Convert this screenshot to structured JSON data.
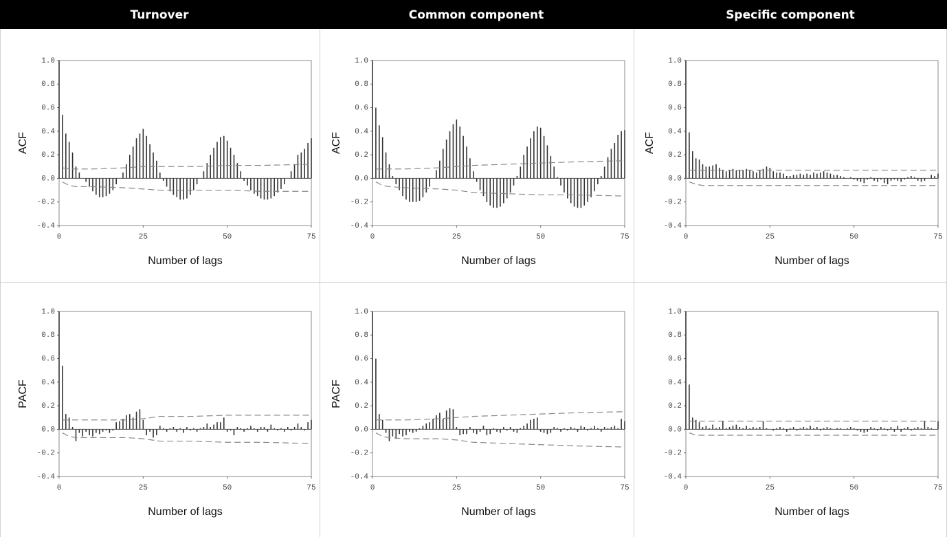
{
  "header": {
    "columns": [
      "Turnover",
      "Common component",
      "Specific component"
    ]
  },
  "chart_data": [
    {
      "type": "bar",
      "ylabel": "ACF",
      "xlabel": "Number of lags",
      "x": [
        0,
        1,
        2,
        3,
        4,
        5,
        6,
        7,
        8,
        9,
        10,
        11,
        12,
        13,
        14,
        15,
        16,
        17,
        18,
        19,
        20,
        21,
        22,
        23,
        24,
        25,
        26,
        27,
        28,
        29,
        30,
        31,
        32,
        33,
        34,
        35,
        36,
        37,
        38,
        39,
        40,
        41,
        42,
        43,
        44,
        45,
        46,
        47,
        48,
        49,
        50,
        51,
        52,
        53,
        54,
        55,
        56,
        57,
        58,
        59,
        60,
        61,
        62,
        63,
        64,
        65,
        66,
        67,
        68,
        69,
        70,
        71,
        72,
        73,
        74,
        75
      ],
      "values": [
        1.0,
        0.54,
        0.38,
        0.31,
        0.22,
        0.1,
        0.05,
        0.0,
        -0.03,
        -0.07,
        -0.11,
        -0.14,
        -0.16,
        -0.16,
        -0.15,
        -0.13,
        -0.1,
        -0.05,
        0.0,
        0.05,
        0.12,
        0.2,
        0.27,
        0.34,
        0.38,
        0.42,
        0.36,
        0.29,
        0.22,
        0.15,
        0.05,
        -0.02,
        -0.07,
        -0.11,
        -0.14,
        -0.16,
        -0.18,
        -0.18,
        -0.17,
        -0.14,
        -0.1,
        -0.05,
        0.0,
        0.06,
        0.13,
        0.2,
        0.26,
        0.31,
        0.35,
        0.36,
        0.32,
        0.26,
        0.2,
        0.13,
        0.06,
        -0.02,
        -0.06,
        -0.1,
        -0.13,
        -0.15,
        -0.17,
        -0.18,
        -0.18,
        -0.17,
        -0.15,
        -0.12,
        -0.09,
        -0.05,
        0.0,
        0.06,
        0.12,
        0.2,
        0.22,
        0.25,
        0.3,
        0.34
      ],
      "confidence_band": {
        "x": [
          1,
          3,
          5,
          10,
          20,
          25,
          30,
          40,
          50,
          60,
          75
        ],
        "upper": [
          0.09,
          0.08,
          0.08,
          0.08,
          0.09,
          0.1,
          0.1,
          0.1,
          0.11,
          0.11,
          0.12
        ],
        "lower": [
          -0.03,
          -0.06,
          -0.07,
          -0.07,
          -0.08,
          -0.09,
          -0.1,
          -0.1,
          -0.1,
          -0.11,
          -0.11
        ]
      },
      "xlim": [
        0,
        75
      ],
      "xticks": [
        0,
        25,
        50,
        75
      ],
      "ylim": [
        -0.4,
        1.0
      ],
      "yticks": [
        {
          "value": -0.4,
          "label": "-0.4"
        },
        -0.2,
        {
          "value": 0,
          "label": "0.0"
        },
        0.2,
        0.4,
        0.6,
        0.8,
        {
          "value": 1.0,
          "label": "1.0"
        }
      ],
      "color": "#333333"
    },
    {
      "type": "bar",
      "ylabel": "ACF",
      "xlabel": "Number of lags",
      "x": [
        0,
        1,
        2,
        3,
        4,
        5,
        6,
        7,
        8,
        9,
        10,
        11,
        12,
        13,
        14,
        15,
        16,
        17,
        18,
        19,
        20,
        21,
        22,
        23,
        24,
        25,
        26,
        27,
        28,
        29,
        30,
        31,
        32,
        33,
        34,
        35,
        36,
        37,
        38,
        39,
        40,
        41,
        42,
        43,
        44,
        45,
        46,
        47,
        48,
        49,
        50,
        51,
        52,
        53,
        54,
        55,
        56,
        57,
        58,
        59,
        60,
        61,
        62,
        63,
        64,
        65,
        66,
        67,
        68,
        69,
        70,
        71,
        72,
        73,
        74,
        75
      ],
      "values": [
        1.0,
        0.6,
        0.45,
        0.35,
        0.22,
        0.12,
        0.02,
        -0.05,
        -0.1,
        -0.15,
        -0.18,
        -0.2,
        -0.2,
        -0.2,
        -0.19,
        -0.16,
        -0.12,
        -0.07,
        0.0,
        0.07,
        0.15,
        0.25,
        0.33,
        0.4,
        0.46,
        0.5,
        0.44,
        0.36,
        0.27,
        0.17,
        0.06,
        -0.03,
        -0.1,
        -0.15,
        -0.2,
        -0.23,
        -0.25,
        -0.25,
        -0.24,
        -0.21,
        -0.17,
        -0.12,
        -0.06,
        0.02,
        0.1,
        0.2,
        0.27,
        0.34,
        0.4,
        0.44,
        0.43,
        0.36,
        0.28,
        0.19,
        0.1,
        0.01,
        -0.06,
        -0.12,
        -0.17,
        -0.21,
        -0.24,
        -0.25,
        -0.25,
        -0.23,
        -0.2,
        -0.16,
        -0.11,
        -0.05,
        0.02,
        0.1,
        0.18,
        0.25,
        0.3,
        0.37,
        0.4,
        0.41
      ],
      "confidence_band": {
        "x": [
          1,
          3,
          5,
          10,
          20,
          25,
          30,
          40,
          50,
          60,
          75
        ],
        "upper": [
          0.08,
          0.08,
          0.08,
          0.08,
          0.09,
          0.1,
          0.11,
          0.12,
          0.13,
          0.14,
          0.15
        ],
        "lower": [
          -0.03,
          -0.06,
          -0.07,
          -0.08,
          -0.09,
          -0.1,
          -0.12,
          -0.13,
          -0.14,
          -0.14,
          -0.15
        ]
      },
      "xlim": [
        0,
        75
      ],
      "xticks": [
        0,
        25,
        50,
        75
      ],
      "ylim": [
        -0.4,
        1.0
      ],
      "yticks": [
        {
          "value": -0.4,
          "label": "-0.4"
        },
        -0.2,
        {
          "value": 0,
          "label": "0.0"
        },
        0.2,
        0.4,
        0.6,
        0.8,
        {
          "value": 1.0,
          "label": "1.0"
        }
      ],
      "color": "#333333"
    },
    {
      "type": "bar",
      "ylabel": "ACF",
      "xlabel": "Number of lags",
      "x": [
        0,
        1,
        2,
        3,
        4,
        5,
        6,
        7,
        8,
        9,
        10,
        11,
        12,
        13,
        14,
        15,
        16,
        17,
        18,
        19,
        20,
        21,
        22,
        23,
        24,
        25,
        26,
        27,
        28,
        29,
        30,
        31,
        32,
        33,
        34,
        35,
        36,
        37,
        38,
        39,
        40,
        41,
        42,
        43,
        44,
        45,
        46,
        47,
        48,
        49,
        50,
        51,
        52,
        53,
        54,
        55,
        56,
        57,
        58,
        59,
        60,
        61,
        62,
        63,
        64,
        65,
        66,
        67,
        68,
        69,
        70,
        71,
        72,
        73,
        74,
        75
      ],
      "values": [
        1.0,
        0.39,
        0.23,
        0.17,
        0.16,
        0.12,
        0.1,
        0.1,
        0.11,
        0.12,
        0.09,
        0.07,
        0.06,
        0.07,
        0.08,
        0.07,
        0.07,
        0.07,
        0.08,
        0.07,
        0.06,
        0.05,
        0.07,
        0.08,
        0.1,
        0.09,
        0.06,
        0.05,
        0.05,
        0.04,
        0.02,
        0.02,
        0.03,
        0.03,
        0.04,
        0.03,
        0.04,
        0.03,
        0.05,
        0.04,
        0.05,
        0.06,
        0.05,
        0.04,
        0.03,
        0.03,
        0.02,
        0.01,
        0.0,
        0.01,
        -0.01,
        -0.02,
        -0.03,
        -0.04,
        -0.01,
        0.01,
        -0.02,
        -0.03,
        -0.01,
        -0.04,
        -0.05,
        -0.02,
        -0.01,
        -0.02,
        -0.03,
        -0.01,
        0.01,
        0.02,
        0.01,
        -0.02,
        -0.03,
        -0.02,
        0.0,
        0.03,
        0.02,
        0.04
      ],
      "confidence_band": {
        "x": [
          1,
          3,
          5,
          10,
          20,
          25,
          30,
          40,
          50,
          60,
          75
        ],
        "upper": [
          0.07,
          0.07,
          0.07,
          0.07,
          0.07,
          0.07,
          0.07,
          0.07,
          0.07,
          0.07,
          0.07
        ],
        "lower": [
          -0.03,
          -0.05,
          -0.06,
          -0.06,
          -0.06,
          -0.06,
          -0.06,
          -0.06,
          -0.06,
          -0.06,
          -0.06
        ]
      },
      "xlim": [
        0,
        75
      ],
      "xticks": [
        0,
        25,
        50,
        75
      ],
      "ylim": [
        -0.4,
        1.0
      ],
      "yticks": [
        {
          "value": -0.4,
          "label": "-0.4"
        },
        -0.2,
        {
          "value": 0,
          "label": "0.0"
        },
        0.2,
        0.4,
        0.6,
        0.8,
        {
          "value": 1.0,
          "label": "1.0"
        }
      ],
      "color": "#333333"
    },
    {
      "type": "bar",
      "ylabel": "PACF",
      "xlabel": "Number of lags",
      "x": [
        0,
        1,
        2,
        3,
        4,
        5,
        6,
        7,
        8,
        9,
        10,
        11,
        12,
        13,
        14,
        15,
        16,
        17,
        18,
        19,
        20,
        21,
        22,
        23,
        24,
        25,
        26,
        27,
        28,
        29,
        30,
        31,
        32,
        33,
        34,
        35,
        36,
        37,
        38,
        39,
        40,
        41,
        42,
        43,
        44,
        45,
        46,
        47,
        48,
        49,
        50,
        51,
        52,
        53,
        54,
        55,
        56,
        57,
        58,
        59,
        60,
        61,
        62,
        63,
        64,
        65,
        66,
        67,
        68,
        69,
        70,
        71,
        72,
        73,
        74,
        75
      ],
      "values": [
        1.0,
        0.54,
        0.13,
        0.1,
        0.02,
        -0.1,
        -0.03,
        -0.06,
        -0.02,
        -0.05,
        -0.06,
        -0.03,
        -0.04,
        -0.02,
        -0.01,
        -0.03,
        -0.01,
        0.06,
        0.07,
        0.09,
        0.12,
        0.13,
        0.1,
        0.15,
        0.17,
        0.08,
        -0.05,
        -0.02,
        -0.07,
        -0.05,
        0.03,
        0.01,
        -0.02,
        0.01,
        0.02,
        -0.02,
        0.01,
        -0.03,
        0.02,
        -0.01,
        0.01,
        -0.02,
        0.01,
        0.02,
        0.05,
        0.02,
        0.04,
        0.06,
        0.06,
        0.1,
        -0.02,
        -0.01,
        -0.05,
        0.02,
        0.01,
        -0.02,
        0.01,
        0.03,
        0.01,
        -0.02,
        0.02,
        0.02,
        -0.02,
        0.04,
        0.01,
        -0.01,
        0.01,
        -0.02,
        0.02,
        -0.01,
        0.02,
        0.05,
        0.02,
        -0.01,
        0.06,
        0.08
      ],
      "confidence_band": {
        "x": [
          1,
          3,
          5,
          10,
          20,
          25,
          30,
          40,
          50,
          60,
          75
        ],
        "upper": [
          0.08,
          0.08,
          0.08,
          0.08,
          0.08,
          0.09,
          0.11,
          0.11,
          0.12,
          0.12,
          0.12
        ],
        "lower": [
          -0.03,
          -0.06,
          -0.07,
          -0.07,
          -0.07,
          -0.08,
          -0.1,
          -0.1,
          -0.11,
          -0.11,
          -0.12
        ]
      },
      "xlim": [
        0,
        75
      ],
      "xticks": [
        0,
        25,
        50,
        75
      ],
      "ylim": [
        -0.4,
        1.0
      ],
      "yticks": [
        {
          "value": -0.4,
          "label": "-0.4"
        },
        -0.2,
        {
          "value": 0,
          "label": "0.0"
        },
        0.2,
        0.4,
        0.6,
        0.8,
        {
          "value": 1.0,
          "label": "1.0"
        }
      ],
      "color": "#333333"
    },
    {
      "type": "bar",
      "ylabel": "PACF",
      "xlabel": "Number of lags",
      "x": [
        0,
        1,
        2,
        3,
        4,
        5,
        6,
        7,
        8,
        9,
        10,
        11,
        12,
        13,
        14,
        15,
        16,
        17,
        18,
        19,
        20,
        21,
        22,
        23,
        24,
        25,
        26,
        27,
        28,
        29,
        30,
        31,
        32,
        33,
        34,
        35,
        36,
        37,
        38,
        39,
        40,
        41,
        42,
        43,
        44,
        45,
        46,
        47,
        48,
        49,
        50,
        51,
        52,
        53,
        54,
        55,
        56,
        57,
        58,
        59,
        60,
        61,
        62,
        63,
        64,
        65,
        66,
        67,
        68,
        69,
        70,
        71,
        72,
        73,
        74,
        75
      ],
      "values": [
        1.0,
        0.6,
        0.13,
        0.08,
        -0.03,
        -0.1,
        -0.06,
        -0.08,
        -0.04,
        -0.06,
        -0.05,
        -0.02,
        -0.03,
        -0.02,
        0.01,
        0.03,
        0.05,
        0.06,
        0.09,
        0.12,
        0.14,
        0.09,
        0.16,
        0.18,
        0.17,
        0.02,
        -0.05,
        -0.04,
        -0.04,
        0.02,
        -0.03,
        -0.04,
        -0.02,
        0.03,
        -0.05,
        -0.04,
        0.01,
        -0.02,
        -0.03,
        0.02,
        -0.01,
        0.02,
        -0.02,
        -0.03,
        0.01,
        0.03,
        0.05,
        0.08,
        0.09,
        0.1,
        -0.02,
        -0.03,
        -0.04,
        -0.03,
        0.02,
        0.01,
        -0.02,
        0.01,
        -0.01,
        0.02,
        0.01,
        -0.02,
        0.03,
        0.02,
        -0.01,
        0.01,
        0.03,
        0.01,
        -0.02,
        0.02,
        0.01,
        0.02,
        0.03,
        0.01,
        0.09,
        0.07
      ],
      "confidence_band": {
        "x": [
          1,
          3,
          5,
          10,
          20,
          25,
          30,
          40,
          50,
          60,
          75
        ],
        "upper": [
          0.08,
          0.08,
          0.08,
          0.08,
          0.09,
          0.1,
          0.11,
          0.12,
          0.13,
          0.14,
          0.15
        ],
        "lower": [
          -0.03,
          -0.06,
          -0.07,
          -0.08,
          -0.08,
          -0.09,
          -0.11,
          -0.12,
          -0.13,
          -0.14,
          -0.15
        ]
      },
      "xlim": [
        0,
        75
      ],
      "xticks": [
        0,
        25,
        50,
        75
      ],
      "ylim": [
        -0.4,
        1.0
      ],
      "yticks": [
        {
          "value": -0.4,
          "label": "-0.4"
        },
        -0.2,
        {
          "value": 0,
          "label": "0.0"
        },
        0.2,
        0.4,
        0.6,
        0.8,
        {
          "value": 1.0,
          "label": "1.0"
        }
      ],
      "color": "#333333"
    },
    {
      "type": "bar",
      "ylabel": "",
      "xlabel": "Number of lags",
      "x": [
        0,
        1,
        2,
        3,
        4,
        5,
        6,
        7,
        8,
        9,
        10,
        11,
        12,
        13,
        14,
        15,
        16,
        17,
        18,
        19,
        20,
        21,
        22,
        23,
        24,
        25,
        26,
        27,
        28,
        29,
        30,
        31,
        32,
        33,
        34,
        35,
        36,
        37,
        38,
        39,
        40,
        41,
        42,
        43,
        44,
        45,
        46,
        47,
        48,
        49,
        50,
        51,
        52,
        53,
        54,
        55,
        56,
        57,
        58,
        59,
        60,
        61,
        62,
        63,
        64,
        65,
        66,
        67,
        68,
        69,
        70,
        71,
        72,
        73,
        74,
        75
      ],
      "values": [
        1.0,
        0.38,
        0.1,
        0.08,
        0.06,
        0.02,
        0.03,
        0.01,
        0.04,
        0.01,
        0.02,
        0.07,
        0.01,
        0.02,
        0.03,
        0.04,
        0.02,
        0.01,
        0.03,
        0.01,
        0.02,
        0.01,
        0.02,
        0.07,
        0.01,
        0.0,
        -0.01,
        0.01,
        0.02,
        0.01,
        -0.02,
        0.01,
        0.02,
        -0.01,
        0.01,
        0.02,
        0.01,
        0.03,
        0.01,
        0.02,
        -0.01,
        0.01,
        0.02,
        0.01,
        0.0,
        0.01,
        0.01,
        0.0,
        0.01,
        0.02,
        0.01,
        -0.01,
        -0.02,
        -0.03,
        -0.02,
        0.02,
        0.01,
        -0.01,
        0.02,
        0.01,
        -0.01,
        0.02,
        -0.02,
        0.03,
        -0.02,
        0.01,
        0.02,
        -0.01,
        0.01,
        0.02,
        0.01,
        0.07,
        0.02,
        0.01,
        0.0,
        0.07
      ],
      "confidence_band": {
        "x": [
          1,
          3,
          5,
          10,
          20,
          25,
          30,
          40,
          50,
          60,
          75
        ],
        "upper": [
          0.07,
          0.07,
          0.07,
          0.07,
          0.07,
          0.07,
          0.07,
          0.07,
          0.07,
          0.07,
          0.07
        ],
        "lower": [
          -0.03,
          -0.05,
          -0.05,
          -0.05,
          -0.05,
          -0.05,
          -0.05,
          -0.05,
          -0.05,
          -0.05,
          -0.05
        ]
      },
      "xlim": [
        0,
        75
      ],
      "xticks": [
        0,
        25,
        50,
        75
      ],
      "ylim": [
        -0.4,
        1.0
      ],
      "yticks": [
        {
          "value": -0.4,
          "label": "-0.4"
        },
        -0.2,
        {
          "value": 0,
          "label": "0.0"
        },
        0.2,
        0.4,
        0.6,
        0.8,
        {
          "value": 1.0,
          "label": "1.0"
        }
      ],
      "color": "#333333"
    }
  ]
}
